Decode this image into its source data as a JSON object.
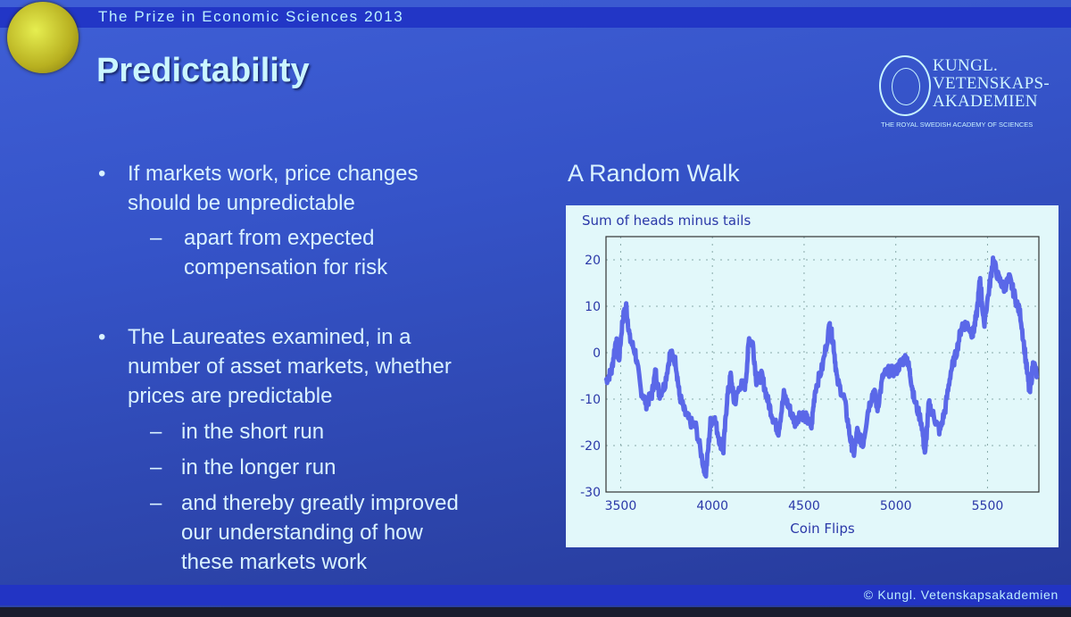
{
  "header": {
    "banner": "The Prize in Economic Sciences 2013",
    "title": "Predictability"
  },
  "logo": {
    "line1": "KUNGL.",
    "line2": "VETENSKAPS-",
    "line3": "AKADEMIEN",
    "subtitle": "THE ROYAL SWEDISH ACADEMY OF SCIENCES"
  },
  "bullets": [
    {
      "lines": [
        "If markets work, price changes",
        "should be unpredictable"
      ],
      "subs": [
        {
          "lines": [
            "apart from expected",
            "compensation for risk"
          ]
        }
      ]
    },
    {
      "lines": [
        "The Laureates examined, in a",
        "number of asset markets, whether",
        "prices are predictable"
      ],
      "subs": [
        {
          "lines": [
            "in the short run"
          ]
        },
        {
          "lines": [
            "in the longer run"
          ]
        },
        {
          "lines": [
            "and thereby greatly improved",
            "our understanding of how",
            "these markets work"
          ]
        }
      ]
    }
  ],
  "bullet_symbol": "•",
  "sub_symbol": "–",
  "chart_title": "A Random Walk",
  "footer": "© Kungl. Vetenskapsakademien",
  "chart_data": {
    "type": "line",
    "title": "Sum of heads minus tails",
    "xlabel": "Coin Flips",
    "ylabel": "",
    "xlim": [
      3420,
      5780
    ],
    "ylim": [
      -30,
      25
    ],
    "xticks": [
      3500,
      4000,
      4500,
      5000,
      5500
    ],
    "yticks": [
      20,
      10,
      0,
      -10,
      -20,
      -30
    ],
    "grid": true,
    "line_color": "#5a68e8",
    "x": [
      3420,
      3450,
      3475,
      3490,
      3510,
      3530,
      3550,
      3580,
      3610,
      3640,
      3670,
      3690,
      3710,
      3740,
      3770,
      3800,
      3820,
      3850,
      3880,
      3910,
      3950,
      3965,
      3990,
      4010,
      4040,
      4060,
      4080,
      4100,
      4120,
      4150,
      4180,
      4200,
      4220,
      4240,
      4270,
      4300,
      4330,
      4360,
      4390,
      4420,
      4450,
      4480,
      4510,
      4540,
      4560,
      4600,
      4640,
      4660,
      4680,
      4720,
      4750,
      4770,
      4790,
      4820,
      4850,
      4880,
      4900,
      4930,
      4960,
      5000,
      5030,
      5060,
      5080,
      5100,
      5140,
      5160,
      5180,
      5210,
      5240,
      5270,
      5300,
      5330,
      5360,
      5390,
      5420,
      5440,
      5460,
      5480,
      5510,
      5530,
      5560,
      5590,
      5620,
      5650,
      5680,
      5710,
      5730,
      5750,
      5770
    ],
    "y": [
      -6,
      -4,
      3,
      -2,
      7,
      10,
      3,
      0,
      -8,
      -11,
      -9,
      -4,
      -9,
      -7,
      0,
      -2,
      -9,
      -13,
      -15,
      -16,
      -24,
      -26,
      -15,
      -14,
      -19,
      -21,
      -10,
      -5,
      -11,
      -7,
      -7,
      3,
      2,
      -6,
      -5,
      -10,
      -14,
      -17,
      -9,
      -12,
      -15,
      -13,
      -14,
      -16,
      -8,
      -3,
      6,
      2,
      -6,
      -10,
      -18,
      -22,
      -17,
      -20,
      -12,
      -8,
      -12,
      -5,
      -4,
      -4,
      -2,
      -1,
      -5,
      -10,
      -15,
      -22,
      -11,
      -14,
      -17,
      -12,
      -4,
      0,
      6,
      6,
      4,
      8,
      16,
      6,
      14,
      20,
      16,
      14,
      16,
      12,
      8,
      -2,
      -9,
      -2,
      -5
    ]
  }
}
